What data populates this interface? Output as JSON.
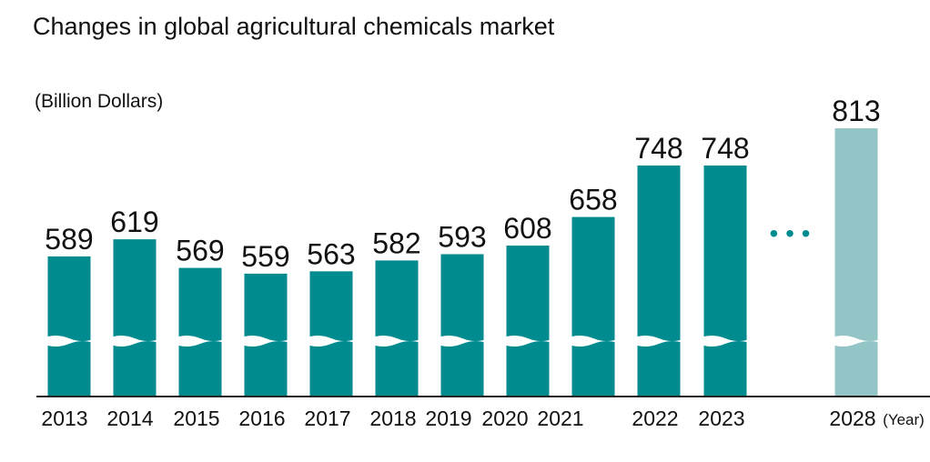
{
  "chart_data": {
    "type": "bar",
    "title": "Changes in global agricultural chemicals market",
    "ylabel": "(Billion Dollars)",
    "xlabel": "(Year)",
    "axis_break": true,
    "gap_marker": "• • •",
    "categories": [
      "2013",
      "2014",
      "2015",
      "2016",
      "2017",
      "2018",
      "2019",
      "2020",
      "2021",
      "2022",
      "2023",
      "2028"
    ],
    "values": [
      589,
      619,
      569,
      559,
      563,
      582,
      593,
      608,
      658,
      748,
      748,
      813
    ],
    "value_labels": [
      "589",
      "619",
      "569",
      "559",
      "563",
      "582",
      "593",
      "608",
      "658",
      "748",
      "748",
      "813"
    ],
    "projected": [
      false,
      false,
      false,
      false,
      false,
      false,
      false,
      false,
      false,
      false,
      false,
      true
    ],
    "colors": {
      "actual": "#008b8f",
      "projected": "#93c5c7",
      "axis": "#222222"
    }
  }
}
